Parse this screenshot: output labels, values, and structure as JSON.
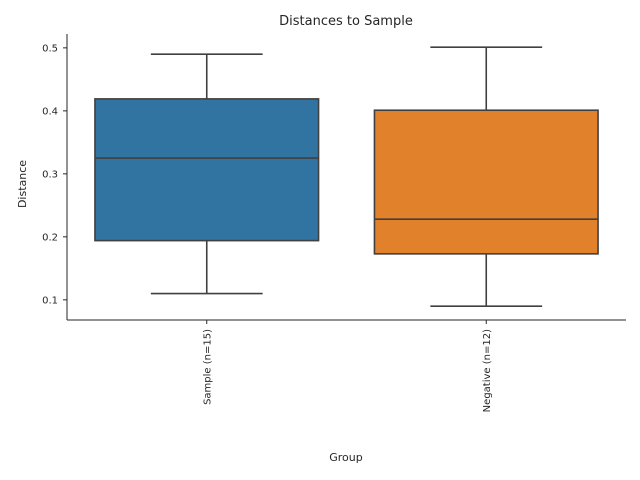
{
  "chart_data": {
    "type": "box",
    "title": "Distances to Sample",
    "xlabel": "Group",
    "ylabel": "Distance",
    "ylim": [
      0.068,
      0.522
    ],
    "yticks": [
      0.1,
      0.2,
      0.3,
      0.4,
      0.5
    ],
    "ytick_labels": [
      "0.1",
      "0.2",
      "0.3",
      "0.4",
      "0.5"
    ],
    "grid": false,
    "categories": [
      "Sample (n=15)",
      "Negative (n=12)"
    ],
    "boxes": [
      {
        "category": "Sample (n=15)",
        "whisker_low": 0.11,
        "q1": 0.194,
        "median": 0.325,
        "q3": 0.419,
        "whisker_high": 0.49,
        "color": "#3274a1"
      },
      {
        "category": "Negative (n=12)",
        "whisker_low": 0.09,
        "q1": 0.173,
        "median": 0.228,
        "q3": 0.401,
        "whisker_high": 0.501,
        "color": "#e1812c"
      }
    ]
  }
}
